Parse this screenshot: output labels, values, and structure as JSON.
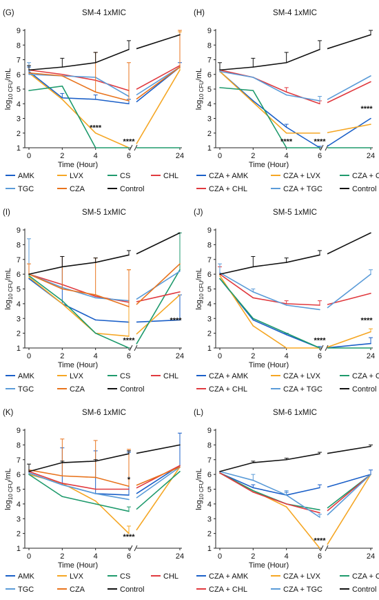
{
  "x_categories": [
    "0",
    "2",
    "4",
    "6",
    "24"
  ],
  "y_ticks": [
    1,
    2,
    3,
    4,
    5,
    6,
    7,
    8,
    9
  ],
  "colors": {
    "AMK": "#1a5fc8",
    "LVX": "#f5a623",
    "CS": "#1e9a6c",
    "CHL": "#e0393e",
    "TGC": "#5a9bd8",
    "CZA": "#e8731c",
    "Control": "#111111",
    "CZA + AMK": "#1a5fc8",
    "CZA + LVX": "#f5a623",
    "CZA + CS": "#1e9a6c",
    "CZA + CHL": "#e0393e",
    "CZA + TGC": "#5a9bd8"
  },
  "chart_data": [
    {
      "type": "line",
      "letter": "(G)",
      "title": "SM-4 1xMIC",
      "xlabel": "Time (Hour)",
      "ylabel": "log10 CFU/mL",
      "ylim": [
        1,
        9
      ],
      "x": [
        "0",
        "2",
        "4",
        "6",
        "24"
      ],
      "series": [
        {
          "name": "AMK",
          "values": [
            6.2,
            4.4,
            4.3,
            4.0,
            6.5
          ],
          "err": [
            0.3,
            0.3,
            0.3,
            0.3,
            0.3
          ]
        },
        {
          "name": "LVX",
          "values": [
            6.1,
            4.3,
            2.0,
            1.0,
            6.3
          ],
          "err": [
            0,
            0,
            0,
            0,
            2.6
          ]
        },
        {
          "name": "CS",
          "values": [
            4.9,
            5.2,
            1.0,
            1.0,
            1.0
          ],
          "err": [
            0,
            0,
            0,
            0,
            0
          ]
        },
        {
          "name": "CHL",
          "values": [
            6.3,
            6.0,
            5.6,
            4.9,
            6.6
          ],
          "err": [
            0,
            0,
            0,
            0,
            0
          ]
        },
        {
          "name": "TGC",
          "values": [
            6.0,
            5.9,
            5.8,
            4.5,
            6.5
          ],
          "err": [
            0.8,
            0,
            0,
            0,
            0
          ]
        },
        {
          "name": "CZA",
          "values": [
            6.1,
            5.9,
            4.8,
            4.2,
            6.5
          ],
          "err": [
            0,
            0,
            2.7,
            2.6,
            2.5
          ]
        },
        {
          "name": "Control",
          "values": [
            6.3,
            6.5,
            6.8,
            7.7,
            8.7
          ],
          "err": [
            0.3,
            0.6,
            0.7,
            0.6,
            0
          ]
        }
      ],
      "stars": [
        {
          "label": "****",
          "x": "4",
          "y": 2.2
        },
        {
          "label": "****",
          "x": "6",
          "y": 1.25
        }
      ]
    },
    {
      "type": "line",
      "letter": "(H)",
      "title": "SM-4 1xMIC",
      "xlabel": "Time (Hour)",
      "ylabel": "log10 CFU/mL",
      "ylim": [
        1,
        9
      ],
      "x": [
        "0",
        "2",
        "4",
        "6",
        "24"
      ],
      "series": [
        {
          "name": "CZA + AMK",
          "values": [
            6.2,
            4.2,
            2.4,
            1.0,
            3.0
          ],
          "err": [
            0,
            0,
            0.2,
            0.1,
            0
          ]
        },
        {
          "name": "CZA + LVX",
          "values": [
            6.2,
            4.1,
            2.0,
            2.0,
            2.6
          ],
          "err": [
            0,
            0,
            0,
            0,
            0
          ]
        },
        {
          "name": "CZA + CS",
          "values": [
            5.1,
            4.9,
            1.0,
            1.0,
            1.0
          ],
          "err": [
            0,
            0,
            0,
            0,
            0
          ]
        },
        {
          "name": "CZA + CHL",
          "values": [
            6.3,
            5.8,
            4.8,
            4.0,
            5.5
          ],
          "err": [
            0,
            0,
            0.3,
            0.2,
            0
          ]
        },
        {
          "name": "CZA + TGC",
          "values": [
            6.2,
            5.8,
            4.6,
            4.2,
            5.9
          ],
          "err": [
            0,
            0,
            0,
            0.3,
            0
          ]
        },
        {
          "name": "Control",
          "values": [
            6.3,
            6.5,
            6.8,
            7.7,
            8.7
          ],
          "err": [
            0.5,
            0.6,
            0.7,
            0.6,
            0.3
          ]
        }
      ],
      "stars": [
        {
          "label": "****",
          "x": "4",
          "y": 1.25
        },
        {
          "label": "****",
          "x": "6",
          "y": 1.25
        },
        {
          "label": "****",
          "x": "24",
          "y": 3.5
        }
      ]
    },
    {
      "type": "line",
      "letter": "(I)",
      "title": "SM-5 1xMIC",
      "xlabel": "Time (Hour)",
      "ylabel": "log10 CFU/mL",
      "ylim": [
        1,
        9
      ],
      "x": [
        "0",
        "2",
        "4",
        "6",
        "24"
      ],
      "series": [
        {
          "name": "AMK",
          "values": [
            5.7,
            4.0,
            2.9,
            2.75,
            2.9
          ],
          "err": [
            0,
            3.2,
            0,
            0,
            1.7
          ]
        },
        {
          "name": "LVX",
          "values": [
            5.8,
            4.0,
            2.0,
            1.8,
            4.6
          ],
          "err": [
            0,
            0,
            0,
            4.5,
            0
          ]
        },
        {
          "name": "CS",
          "values": [
            5.9,
            4.2,
            2.0,
            1.0,
            6.3
          ],
          "err": [
            0,
            0,
            0,
            0,
            2.5
          ]
        },
        {
          "name": "CHL",
          "values": [
            6.0,
            5.3,
            4.5,
            4.1,
            4.8
          ],
          "err": [
            0,
            0,
            0,
            0,
            0
          ]
        },
        {
          "name": "TGC",
          "values": [
            6.0,
            5.1,
            4.4,
            4.2,
            6.2
          ],
          "err": [
            2.4,
            0,
            0,
            0,
            0
          ]
        },
        {
          "name": "CZA",
          "values": [
            6.0,
            5.0,
            4.6,
            3.8,
            6.7
          ],
          "err": [
            0.7,
            2.2,
            2.5,
            2.5,
            0
          ]
        },
        {
          "name": "Control",
          "values": [
            6.0,
            6.5,
            6.8,
            7.3,
            8.8
          ],
          "err": [
            0,
            0.7,
            0.3,
            0.3,
            0
          ]
        }
      ],
      "stars": [
        {
          "label": "****",
          "x": "6",
          "y": 1.35
        },
        {
          "label": "****",
          "x": "24",
          "y": 2.7
        }
      ]
    },
    {
      "type": "line",
      "letter": "(J)",
      "title": "SM-5 1xMIC",
      "xlabel": "Time (Hour)",
      "ylabel": "log10 CFU/mL",
      "ylim": [
        1,
        9
      ],
      "x": [
        "0",
        "2",
        "4",
        "6",
        "24"
      ],
      "series": [
        {
          "name": "CZA + AMK",
          "values": [
            5.7,
            2.9,
            1.9,
            1.0,
            1.3
          ],
          "err": [
            0,
            0,
            0.1,
            0.1,
            0.4
          ]
        },
        {
          "name": "CZA + LVX",
          "values": [
            5.9,
            2.5,
            1.0,
            1.0,
            2.1
          ],
          "err": [
            0,
            0,
            0,
            0,
            0.2
          ]
        },
        {
          "name": "CZA + CS",
          "values": [
            5.7,
            3.0,
            2.0,
            1.0,
            1.0
          ],
          "err": [
            0,
            0,
            0,
            0,
            0
          ]
        },
        {
          "name": "CZA + CHL",
          "values": [
            6.0,
            4.4,
            4.0,
            3.9,
            4.7
          ],
          "err": [
            0.5,
            0,
            0.2,
            0.3,
            0
          ]
        },
        {
          "name": "CZA + TGC",
          "values": [
            6.1,
            4.8,
            3.9,
            3.6,
            6.0
          ],
          "err": [
            0.6,
            0.2,
            0,
            0,
            0.3
          ]
        },
        {
          "name": "Control",
          "values": [
            6.0,
            6.5,
            6.8,
            7.3,
            8.8
          ],
          "err": [
            0,
            0.7,
            0.3,
            0.3,
            0
          ]
        }
      ],
      "stars": [
        {
          "label": "****",
          "x": "6",
          "y": 1.35
        },
        {
          "label": "****",
          "x": "24",
          "y": 2.7
        }
      ]
    },
    {
      "type": "line",
      "letter": "(K)",
      "title": "SM-6 1xMIC",
      "xlabel": "Time (Hour)",
      "ylabel": "log10 CFU/mL",
      "ylim": [
        1,
        9
      ],
      "x": [
        "0",
        "2",
        "4",
        "6",
        "24"
      ],
      "series": [
        {
          "name": "AMK",
          "values": [
            6.1,
            5.3,
            4.7,
            4.6,
            6.6
          ],
          "err": [
            0,
            2.5,
            2.9,
            2.9,
            2.2
          ]
        },
        {
          "name": "LVX",
          "values": [
            6.0,
            5.4,
            4.2,
            2.0,
            6.5
          ],
          "err": [
            0,
            0,
            0,
            0.5,
            0
          ]
        },
        {
          "name": "CS",
          "values": [
            6.0,
            4.5,
            4.0,
            3.5,
            6.2
          ],
          "err": [
            0,
            0,
            0,
            0.3,
            0
          ]
        },
        {
          "name": "CHL",
          "values": [
            6.2,
            5.4,
            5.0,
            5.0,
            6.6
          ],
          "err": [
            0,
            0,
            0,
            0,
            0
          ]
        },
        {
          "name": "TGC",
          "values": [
            6.1,
            5.3,
            4.7,
            4.3,
            6.5
          ],
          "err": [
            0,
            0,
            0,
            0,
            0
          ]
        },
        {
          "name": "CZA",
          "values": [
            6.3,
            5.9,
            5.8,
            5.2,
            6.5
          ],
          "err": [
            0,
            2.5,
            2.5,
            2.5,
            0
          ]
        },
        {
          "name": "Control",
          "values": [
            6.2,
            6.8,
            6.9,
            7.4,
            8.0
          ],
          "err": [
            0.5,
            0.1,
            0.1,
            0.2,
            0
          ]
        }
      ],
      "stars": [
        {
          "label": "*",
          "x": "6",
          "y": 5.5
        },
        {
          "label": "****",
          "x": "6",
          "y": 1.6
        }
      ]
    },
    {
      "type": "line",
      "letter": "(L)",
      "title": "SM-6 1xMIC",
      "xlabel": "Time (Hour)",
      "ylabel": "log10 CFU/mL",
      "ylim": [
        1,
        9
      ],
      "x": [
        "0",
        "2",
        "4",
        "6",
        "24"
      ],
      "series": [
        {
          "name": "CZA + AMK",
          "values": [
            6.1,
            5.1,
            4.6,
            5.1,
            6.0
          ],
          "err": [
            0,
            0.2,
            0.2,
            0.2,
            0.3
          ]
        },
        {
          "name": "CZA + LVX",
          "values": [
            6.1,
            4.9,
            3.8,
            1.0,
            6.0
          ],
          "err": [
            0,
            0,
            0,
            0,
            0
          ]
        },
        {
          "name": "CZA + CS",
          "values": [
            6.1,
            4.9,
            4.0,
            3.6,
            6.0
          ],
          "err": [
            0,
            0,
            0,
            0,
            0
          ]
        },
        {
          "name": "CZA + CHL",
          "values": [
            6.1,
            4.8,
            4.0,
            3.4,
            6.0
          ],
          "err": [
            0,
            0,
            0,
            0,
            0
          ]
        },
        {
          "name": "CZA + TGC",
          "values": [
            6.2,
            5.6,
            4.6,
            3.1,
            6.0
          ],
          "err": [
            0,
            0.4,
            0.3,
            0.2,
            0
          ]
        },
        {
          "name": "Control",
          "values": [
            6.2,
            6.8,
            7.0,
            7.4,
            7.9
          ],
          "err": [
            0,
            0.1,
            0.1,
            0.1,
            0.1
          ]
        }
      ],
      "stars": [
        {
          "label": "****",
          "x": "6",
          "y": 1.35
        }
      ]
    }
  ]
}
